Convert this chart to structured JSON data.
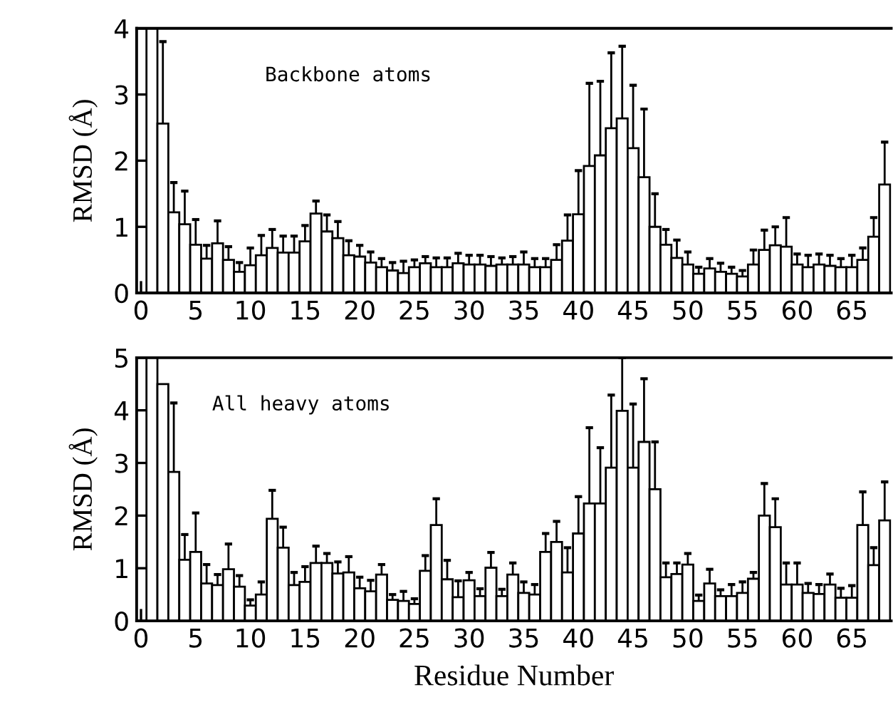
{
  "chart_data": [
    {
      "type": "bar",
      "ylabel": "RMSD (Å)",
      "annotations": [
        "Backbone atoms"
      ],
      "color": "#ffffff",
      "x": [
        1,
        2,
        3,
        4,
        5,
        6,
        7,
        8,
        9,
        10,
        11,
        12,
        13,
        14,
        15,
        16,
        17,
        18,
        19,
        20,
        21,
        22,
        23,
        24,
        25,
        26,
        27,
        28,
        29,
        30,
        31,
        32,
        33,
        34,
        35,
        36,
        37,
        38,
        39,
        40,
        41,
        42,
        43,
        44,
        45,
        46,
        47,
        48,
        49,
        50,
        51,
        52,
        53,
        54,
        55,
        56,
        57,
        58,
        59,
        60,
        61,
        62,
        63,
        64,
        65,
        66,
        67,
        68
      ],
      "values": [
        4,
        2.56,
        1.22,
        1.04,
        0.73,
        0.52,
        0.75,
        0.5,
        0.32,
        0.42,
        0.57,
        0.68,
        0.61,
        0.61,
        0.78,
        1.2,
        0.93,
        0.83,
        0.57,
        0.55,
        0.46,
        0.39,
        0.34,
        0.3,
        0.39,
        0.45,
        0.39,
        0.39,
        0.45,
        0.43,
        0.43,
        0.41,
        0.43,
        0.43,
        0.43,
        0.39,
        0.39,
        0.5,
        0.79,
        1.19,
        1.92,
        2.08,
        2.49,
        2.64,
        2.19,
        1.75,
        1.0,
        0.73,
        0.53,
        0.43,
        0.29,
        0.37,
        0.32,
        0.29,
        0.25,
        0.43,
        0.65,
        0.72,
        0.7,
        0.43,
        0.39,
        0.43,
        0.41,
        0.39,
        0.39,
        0.5,
        0.85,
        1.64
      ],
      "errors": [
        null,
        [
          2.56,
          3.8
        ],
        [
          1.22,
          1.67
        ],
        [
          1.04,
          1.54
        ],
        [
          0.73,
          1.11
        ],
        [
          0.52,
          0.72
        ],
        [
          0.75,
          1.09
        ],
        [
          0.5,
          0.7
        ],
        [
          0.32,
          0.46
        ],
        [
          0.42,
          0.68
        ],
        [
          0.57,
          0.87
        ],
        [
          0.68,
          0.96
        ],
        [
          0.61,
          0.86
        ],
        [
          0.61,
          0.86
        ],
        [
          0.78,
          1.02
        ],
        [
          1.2,
          1.39
        ],
        [
          0.93,
          1.18
        ],
        [
          0.83,
          1.08
        ],
        [
          0.57,
          0.79
        ],
        [
          0.55,
          0.72
        ],
        [
          0.46,
          0.62
        ],
        [
          0.39,
          0.52
        ],
        [
          0.34,
          0.46
        ],
        [
          0.3,
          0.48
        ],
        [
          0.39,
          0.5
        ],
        [
          0.45,
          0.55
        ],
        [
          0.39,
          0.53
        ],
        [
          0.39,
          0.53
        ],
        [
          0.45,
          0.6
        ],
        [
          0.43,
          0.57
        ],
        [
          0.43,
          0.57
        ],
        [
          0.41,
          0.55
        ],
        [
          0.43,
          0.53
        ],
        [
          0.43,
          0.55
        ],
        [
          0.43,
          0.62
        ],
        [
          0.39,
          0.52
        ],
        [
          0.39,
          0.52
        ],
        [
          0.5,
          0.73
        ],
        [
          0.79,
          1.18
        ],
        [
          1.19,
          1.85
        ],
        [
          1.92,
          3.17
        ],
        [
          2.08,
          3.2
        ],
        [
          2.49,
          3.63
        ],
        [
          2.64,
          3.73
        ],
        [
          2.19,
          3.14
        ],
        [
          1.75,
          2.78
        ],
        [
          1.0,
          1.5
        ],
        [
          0.73,
          0.96
        ],
        [
          0.53,
          0.8
        ],
        [
          0.43,
          0.62
        ],
        [
          0.29,
          0.39
        ],
        [
          0.37,
          0.52
        ],
        [
          0.32,
          0.45
        ],
        [
          0.29,
          0.39
        ],
        [
          0.25,
          0.34
        ],
        [
          0.43,
          0.65
        ],
        [
          0.65,
          0.95
        ],
        [
          0.72,
          1.0
        ],
        [
          0.7,
          1.14
        ],
        [
          0.43,
          0.59
        ],
        [
          0.39,
          0.57
        ],
        [
          0.43,
          0.59
        ],
        [
          0.41,
          0.57
        ],
        [
          0.39,
          0.52
        ],
        [
          0.39,
          0.57
        ],
        [
          0.5,
          0.68
        ],
        [
          0.85,
          1.14
        ],
        [
          1.64,
          2.28
        ]
      ],
      "xlim": [
        -0.4,
        68.6
      ],
      "xticks": [
        0,
        5,
        10,
        15,
        20,
        25,
        30,
        35,
        40,
        45,
        50,
        55,
        60,
        65
      ],
      "ylim": [
        0,
        4
      ],
      "yticks": [
        0,
        1,
        2,
        3,
        4
      ],
      "grid": false,
      "legend": false
    },
    {
      "type": "bar",
      "xlabel": "Residue Number",
      "ylabel": "RMSD (Å)",
      "annotations": [
        "All heavy atoms"
      ],
      "color": "#ffffff",
      "x": [
        1,
        2,
        3,
        4,
        5,
        6,
        7,
        8,
        9,
        10,
        11,
        12,
        13,
        14,
        15,
        16,
        17,
        18,
        19,
        20,
        21,
        22,
        23,
        24,
        25,
        26,
        27,
        28,
        29,
        30,
        31,
        32,
        33,
        34,
        35,
        36,
        37,
        38,
        39,
        40,
        41,
        42,
        43,
        44,
        45,
        46,
        47,
        48,
        49,
        50,
        51,
        52,
        53,
        54,
        55,
        56,
        57,
        58,
        59,
        60,
        61,
        62,
        63,
        64,
        65,
        66,
        67,
        68
      ],
      "values": [
        5,
        4.5,
        2.83,
        1.16,
        1.31,
        0.71,
        0.68,
        0.98,
        0.65,
        0.29,
        0.5,
        1.94,
        1.39,
        0.68,
        0.74,
        1.1,
        1.1,
        0.9,
        0.92,
        0.62,
        0.56,
        0.88,
        0.4,
        0.38,
        0.32,
        0.95,
        1.82,
        0.79,
        0.45,
        0.77,
        0.47,
        1.01,
        0.47,
        0.88,
        0.53,
        0.5,
        1.31,
        1.5,
        0.92,
        1.66,
        2.23,
        2.23,
        2.91,
        3.99,
        2.91,
        3.4,
        2.5,
        0.83,
        0.89,
        1.07,
        0.38,
        0.71,
        0.47,
        0.47,
        0.53,
        0.8,
        2.0,
        1.78,
        0.69,
        0.69,
        0.53,
        0.51,
        0.69,
        0.44,
        0.44,
        1.82,
        1.06,
        1.91
      ],
      "errors": [
        null,
        null,
        [
          2.83,
          4.14
        ],
        [
          1.16,
          1.64
        ],
        [
          1.31,
          2.05
        ],
        [
          0.71,
          1.07
        ],
        [
          0.68,
          0.88
        ],
        [
          0.98,
          1.46
        ],
        [
          0.65,
          0.86
        ],
        [
          0.29,
          0.4
        ],
        [
          0.5,
          0.74
        ],
        [
          1.94,
          2.48
        ],
        [
          1.39,
          1.78
        ],
        [
          0.68,
          0.92
        ],
        [
          0.74,
          1.03
        ],
        [
          1.1,
          1.42
        ],
        [
          1.1,
          1.28
        ],
        [
          0.9,
          1.12
        ],
        [
          0.92,
          1.22
        ],
        [
          0.62,
          0.83
        ],
        [
          0.56,
          0.77
        ],
        [
          0.88,
          1.07
        ],
        [
          0.4,
          0.5
        ],
        [
          0.38,
          0.56
        ],
        [
          0.32,
          0.42
        ],
        [
          0.95,
          1.24
        ],
        [
          1.82,
          2.32
        ],
        [
          0.79,
          1.15
        ],
        [
          0.45,
          0.76
        ],
        [
          0.77,
          0.92
        ],
        [
          0.47,
          0.61
        ],
        [
          1.01,
          1.3
        ],
        [
          0.47,
          0.6
        ],
        [
          0.88,
          1.1
        ],
        [
          0.53,
          0.74
        ],
        [
          0.5,
          0.69
        ],
        [
          1.31,
          1.66
        ],
        [
          1.5,
          1.89
        ],
        [
          0.92,
          1.39
        ],
        [
          1.66,
          2.36
        ],
        [
          2.23,
          3.67
        ],
        [
          2.23,
          3.29
        ],
        [
          2.91,
          4.29
        ],
        [
          3.99,
          5.0
        ],
        [
          2.91,
          4.12
        ],
        [
          3.4,
          4.6
        ],
        [
          2.5,
          3.4
        ],
        [
          0.83,
          1.1
        ],
        [
          0.89,
          1.1
        ],
        [
          1.07,
          1.28
        ],
        [
          0.38,
          0.49
        ],
        [
          0.71,
          0.98
        ],
        [
          0.47,
          0.59
        ],
        [
          0.47,
          0.69
        ],
        [
          0.53,
          0.74
        ],
        [
          0.8,
          0.92
        ],
        [
          2.0,
          2.61
        ],
        [
          1.78,
          2.32
        ],
        [
          0.69,
          1.1
        ],
        [
          0.69,
          1.1
        ],
        [
          0.53,
          0.71
        ],
        [
          0.51,
          0.69
        ],
        [
          0.69,
          0.89
        ],
        [
          0.44,
          0.62
        ],
        [
          0.44,
          0.67
        ],
        [
          1.82,
          2.45
        ],
        [
          1.06,
          1.39
        ],
        [
          1.91,
          2.64
        ]
      ],
      "xlim": [
        -0.4,
        68.6
      ],
      "xticks": [
        0,
        5,
        10,
        15,
        20,
        25,
        30,
        35,
        40,
        45,
        50,
        55,
        60,
        65
      ],
      "ylim": [
        0,
        5
      ],
      "yticks": [
        0,
        1,
        2,
        3,
        4,
        5
      ],
      "grid": false,
      "legend": false
    }
  ]
}
